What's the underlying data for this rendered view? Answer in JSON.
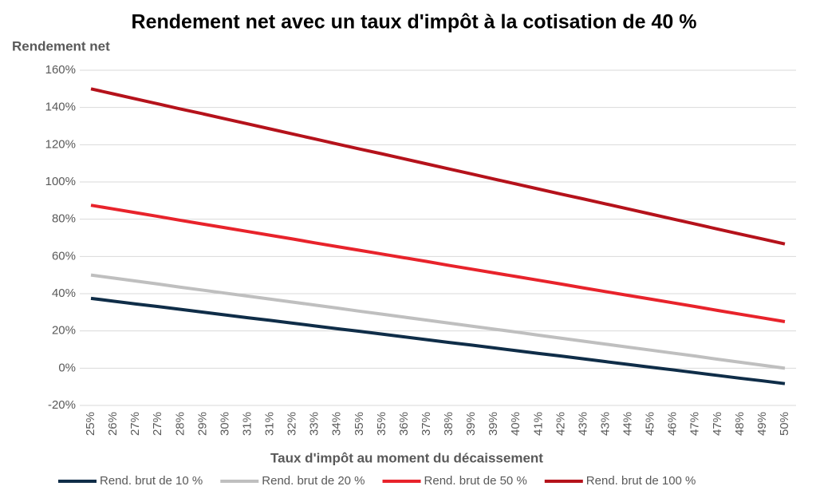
{
  "chart_data": {
    "type": "line",
    "title": "Rendement net avec un taux d'impôt à la cotisation de 40 %",
    "y_label": "Rendement net",
    "x_label": "Taux d'impôt au moment du décaissement",
    "categories": [
      "25%",
      "26%",
      "27%",
      "27%",
      "28%",
      "29%",
      "30%",
      "31%",
      "31%",
      "32%",
      "33%",
      "34%",
      "35%",
      "35%",
      "36%",
      "37%",
      "38%",
      "39%",
      "39%",
      "40%",
      "41%",
      "42%",
      "43%",
      "43%",
      "44%",
      "45%",
      "46%",
      "47%",
      "47%",
      "48%",
      "49%",
      "50%"
    ],
    "series": [
      {
        "name": "Rend. brut de 10 %",
        "color": "#0f2d48",
        "values": [
          37.5,
          36.0,
          34.5,
          33.1,
          31.6,
          30.1,
          28.6,
          27.1,
          25.7,
          24.2,
          22.7,
          21.2,
          19.8,
          18.3,
          16.8,
          15.3,
          13.8,
          12.4,
          10.9,
          9.4,
          7.9,
          6.5,
          5.0,
          3.5,
          2.0,
          0.5,
          -0.9,
          -2.4,
          -3.9,
          -5.4,
          -6.8,
          -8.3
        ]
      },
      {
        "name": "Rend. brut de 20 %",
        "color": "#bfbfbf",
        "values": [
          50.0,
          48.4,
          46.8,
          45.2,
          43.5,
          41.9,
          40.3,
          38.7,
          37.1,
          35.5,
          33.9,
          32.3,
          30.6,
          29.0,
          27.4,
          25.8,
          24.2,
          22.6,
          21.0,
          19.4,
          17.7,
          16.1,
          14.5,
          12.9,
          11.3,
          9.7,
          8.1,
          6.5,
          4.8,
          3.2,
          1.6,
          0.0
        ]
      },
      {
        "name": "Rend. brut de 50 %",
        "color": "#e8232b",
        "values": [
          87.5,
          85.5,
          83.5,
          81.5,
          79.4,
          77.4,
          75.4,
          73.4,
          71.4,
          69.4,
          67.3,
          65.3,
          63.3,
          61.3,
          59.3,
          57.3,
          55.2,
          53.2,
          51.2,
          49.2,
          47.2,
          45.2,
          43.1,
          41.1,
          39.1,
          37.1,
          35.1,
          33.1,
          31.0,
          29.0,
          27.0,
          25.0
        ]
      },
      {
        "name": "Rend. brut de 100 %",
        "color": "#b5121b",
        "values": [
          150.0,
          147.3,
          144.6,
          141.9,
          139.2,
          136.6,
          133.9,
          131.2,
          128.5,
          125.8,
          123.1,
          120.4,
          117.7,
          115.1,
          112.4,
          109.7,
          107.0,
          104.3,
          101.6,
          98.9,
          96.2,
          93.5,
          90.9,
          88.2,
          85.5,
          82.8,
          80.1,
          77.4,
          74.7,
          72.0,
          69.4,
          66.7
        ]
      }
    ],
    "ylim": [
      -20,
      160
    ],
    "yticks": [
      {
        "value": -20,
        "label": "-20%"
      },
      {
        "value": 0,
        "label": "0%"
      },
      {
        "value": 20,
        "label": "20%"
      },
      {
        "value": 40,
        "label": "40%"
      },
      {
        "value": 60,
        "label": "60%"
      },
      {
        "value": 80,
        "label": "80%"
      },
      {
        "value": 100,
        "label": "100%"
      },
      {
        "value": 120,
        "label": "120%"
      },
      {
        "value": 140,
        "label": "140%"
      },
      {
        "value": 160,
        "label": "160%"
      }
    ],
    "grid": true,
    "legend": "bottom"
  }
}
